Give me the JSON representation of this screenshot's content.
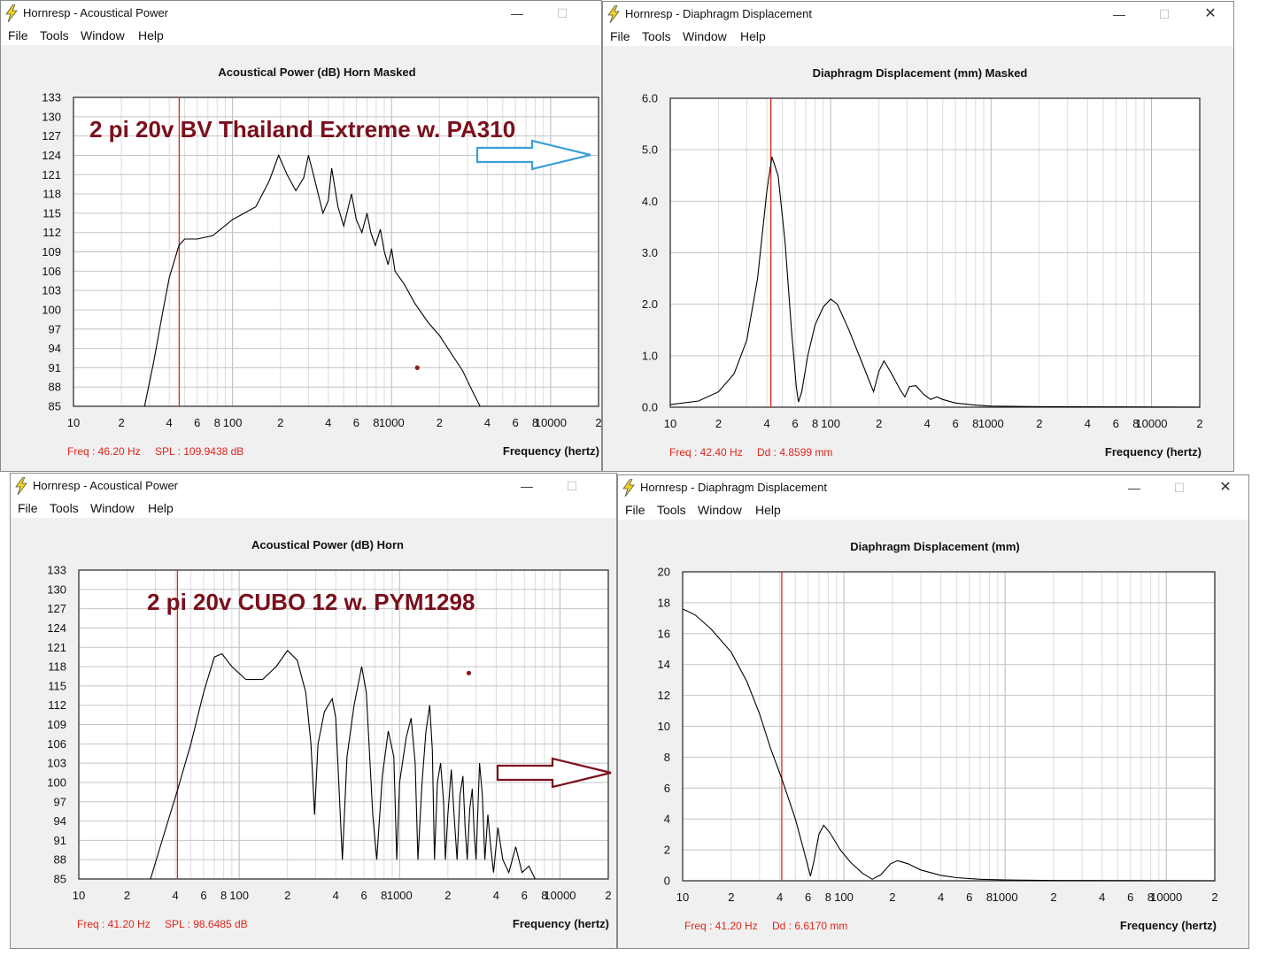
{
  "windows": [
    {
      "title": "Hornresp - Acoustical Power",
      "controls": [
        "—",
        "☐"
      ],
      "menus": [
        "File",
        "Tools",
        "Window",
        "Help"
      ],
      "chart_title": "Acoustical Power (dB)   Horn   Masked",
      "annotation": "2 pi 20v BV Thailand Extreme w. PA310",
      "freq_readout": "Freq : 46.20 Hz",
      "value_readout": "SPL : 109.9438 dB",
      "xlabel": "Frequency (hertz)",
      "arrow_color": "#3aa0d8",
      "chart_data": {
        "type": "line",
        "title": "Acoustical Power (dB)   Horn   Masked",
        "xlabel": "Frequency (hertz)",
        "x_scale": "log",
        "xlim": [
          10,
          20000
        ],
        "ylim": [
          85,
          133
        ],
        "yticks": [
          "133",
          "130",
          "127",
          "124",
          "121",
          "118",
          "115",
          "112",
          "109",
          "106",
          "103",
          "100",
          "97",
          "94",
          "91",
          "88",
          "85"
        ],
        "xticks": [
          "10",
          "2",
          "4",
          "6",
          "8",
          "100",
          "2",
          "4",
          "6",
          "8",
          "1000",
          "2",
          "4",
          "6",
          "8",
          "10000",
          "2"
        ],
        "cursor_x": 46.2,
        "marker": {
          "x": 1450,
          "y": 91
        },
        "series": [
          {
            "points": [
              [
                28,
                85
              ],
              [
                32,
                92
              ],
              [
                36,
                99
              ],
              [
                40,
                105
              ],
              [
                46,
                110
              ],
              [
                50,
                111
              ],
              [
                60,
                111
              ],
              [
                75,
                111.5
              ],
              [
                100,
                114
              ],
              [
                140,
                116
              ],
              [
                170,
                120
              ],
              [
                195,
                124
              ],
              [
                220,
                121
              ],
              [
                250,
                118.5
              ],
              [
                280,
                120.5
              ],
              [
                300,
                124
              ],
              [
                330,
                120
              ],
              [
                370,
                115
              ],
              [
                400,
                117
              ],
              [
                420,
                122
              ],
              [
                460,
                116
              ],
              [
                500,
                113
              ],
              [
                560,
                118
              ],
              [
                600,
                114
              ],
              [
                650,
                112
              ],
              [
                700,
                115
              ],
              [
                740,
                112
              ],
              [
                790,
                110
              ],
              [
                850,
                112.5
              ],
              [
                900,
                109
              ],
              [
                950,
                107
              ],
              [
                1000,
                109.5
              ],
              [
                1050,
                106
              ],
              [
                1200,
                104
              ],
              [
                1400,
                101
              ],
              [
                1700,
                98
              ],
              [
                2000,
                96
              ],
              [
                2400,
                93
              ],
              [
                2800,
                90.5
              ],
              [
                3200,
                87.5
              ],
              [
                3600,
                85
              ]
            ]
          }
        ]
      }
    },
    {
      "title": "Hornresp - Diaphragm Displacement",
      "controls": [
        "—",
        "☐",
        "✕"
      ],
      "menus": [
        "File",
        "Tools",
        "Window",
        "Help"
      ],
      "chart_title": "Diaphragm Displacement (mm)   Masked",
      "freq_readout": "Freq : 42.40 Hz",
      "value_readout": "Dd : 4.8599 mm",
      "xlabel": "Frequency (hertz)",
      "chart_data": {
        "type": "line",
        "title": "Diaphragm Displacement (mm)   Masked",
        "xlabel": "Frequency (hertz)",
        "x_scale": "log",
        "xlim": [
          10,
          20000
        ],
        "ylim": [
          0,
          6
        ],
        "yticks": [
          "6.0",
          "5.0",
          "4.0",
          "3.0",
          "2.0",
          "1.0",
          "0.0"
        ],
        "xticks": [
          "10",
          "2",
          "4",
          "6",
          "8",
          "100",
          "2",
          "4",
          "6",
          "8",
          "1000",
          "2",
          "4",
          "6",
          "8",
          "10000",
          "2"
        ],
        "cursor_x": 42.4,
        "series": [
          {
            "points": [
              [
                10,
                0.05
              ],
              [
                15,
                0.12
              ],
              [
                20,
                0.3
              ],
              [
                25,
                0.65
              ],
              [
                30,
                1.3
              ],
              [
                35,
                2.5
              ],
              [
                40,
                4.2
              ],
              [
                43,
                4.86
              ],
              [
                47,
                4.5
              ],
              [
                52,
                3.2
              ],
              [
                57,
                1.5
              ],
              [
                61,
                0.4
              ],
              [
                63,
                0.1
              ],
              [
                66,
                0.3
              ],
              [
                72,
                1.0
              ],
              [
                80,
                1.6
              ],
              [
                90,
                1.95
              ],
              [
                100,
                2.1
              ],
              [
                110,
                2.0
              ],
              [
                130,
                1.5
              ],
              [
                160,
                0.8
              ],
              [
                185,
                0.3
              ],
              [
                200,
                0.7
              ],
              [
                215,
                0.9
              ],
              [
                240,
                0.65
              ],
              [
                270,
                0.35
              ],
              [
                290,
                0.2
              ],
              [
                310,
                0.4
              ],
              [
                340,
                0.42
              ],
              [
                380,
                0.25
              ],
              [
                420,
                0.15
              ],
              [
                460,
                0.2
              ],
              [
                500,
                0.15
              ],
              [
                600,
                0.08
              ],
              [
                800,
                0.04
              ],
              [
                1000,
                0.02
              ],
              [
                2000,
                0.01
              ],
              [
                20000,
                0.0
              ]
            ]
          }
        ]
      }
    },
    {
      "title": "Hornresp - Acoustical Power",
      "controls": [
        "—",
        "☐"
      ],
      "menus": [
        "File",
        "Tools",
        "Window",
        "Help"
      ],
      "chart_title": "Acoustical Power (dB)   Horn",
      "annotation": "2 pi 20v  CUBO 12 w. PYM1298",
      "freq_readout": "Freq : 41.20 Hz",
      "value_readout": "SPL : 98.6485 dB",
      "xlabel": "Frequency (hertz)",
      "arrow_color": "#7a0f1c",
      "chart_data": {
        "type": "line",
        "title": "Acoustical Power (dB)   Horn",
        "xlabel": "Frequency (hertz)",
        "x_scale": "log",
        "xlim": [
          10,
          20000
        ],
        "ylim": [
          85,
          133
        ],
        "yticks": [
          "133",
          "130",
          "127",
          "124",
          "121",
          "118",
          "115",
          "112",
          "109",
          "106",
          "103",
          "100",
          "97",
          "94",
          "91",
          "88",
          "85"
        ],
        "xticks": [
          "10",
          "2",
          "4",
          "6",
          "8",
          "100",
          "2",
          "4",
          "6",
          "8",
          "1000",
          "2",
          "4",
          "6",
          "8",
          "10000",
          "2"
        ],
        "cursor_x": 41.2,
        "marker": {
          "x": 2700,
          "y": 117
        },
        "series": [
          {
            "points": [
              [
                28,
                85
              ],
              [
                34,
                92
              ],
              [
                41,
                98.6
              ],
              [
                50,
                106
              ],
              [
                60,
                114
              ],
              [
                70,
                119.5
              ],
              [
                78,
                120
              ],
              [
                90,
                118
              ],
              [
                110,
                116
              ],
              [
                140,
                116
              ],
              [
                170,
                118
              ],
              [
                200,
                120.5
              ],
              [
                230,
                119
              ],
              [
                260,
                114
              ],
              [
                280,
                106
              ],
              [
                295,
                95
              ],
              [
                310,
                106
              ],
              [
                340,
                111
              ],
              [
                380,
                113
              ],
              [
                400,
                110
              ],
              [
                440,
                88
              ],
              [
                470,
                104
              ],
              [
                520,
                112
              ],
              [
                580,
                118
              ],
              [
                620,
                114
              ],
              [
                680,
                95
              ],
              [
                720,
                88
              ],
              [
                780,
                101
              ],
              [
                850,
                108
              ],
              [
                920,
                104
              ],
              [
                960,
                88
              ],
              [
                1000,
                100
              ],
              [
                1100,
                107
              ],
              [
                1180,
                110
              ],
              [
                1250,
                103
              ],
              [
                1300,
                88
              ],
              [
                1380,
                100
              ],
              [
                1460,
                108
              ],
              [
                1540,
                112
              ],
              [
                1600,
                105
              ],
              [
                1650,
                88
              ],
              [
                1720,
                100
              ],
              [
                1800,
                103
              ],
              [
                1880,
                97
              ],
              [
                1930,
                88
              ],
              [
                2000,
                95
              ],
              [
                2100,
                102
              ],
              [
                2200,
                94
              ],
              [
                2280,
                88
              ],
              [
                2380,
                98
              ],
              [
                2480,
                101
              ],
              [
                2560,
                93
              ],
              [
                2640,
                88
              ],
              [
                2740,
                96
              ],
              [
                2840,
                99
              ],
              [
                2920,
                92
              ],
              [
                3000,
                88
              ],
              [
                3150,
                103
              ],
              [
                3280,
                98
              ],
              [
                3400,
                88
              ],
              [
                3550,
                95
              ],
              [
                3700,
                90
              ],
              [
                3850,
                86
              ],
              [
                4100,
                93
              ],
              [
                4400,
                88
              ],
              [
                4800,
                86
              ],
              [
                5300,
                90
              ],
              [
                5800,
                86
              ],
              [
                6400,
                87
              ],
              [
                7000,
                85
              ]
            ]
          }
        ]
      }
    },
    {
      "title": "Hornresp - Diaphragm Displacement",
      "controls": [
        "—",
        "☐",
        "✕"
      ],
      "menus": [
        "File",
        "Tools",
        "Window",
        "Help"
      ],
      "chart_title": "Diaphragm Displacement (mm)",
      "freq_readout": "Freq : 41.20 Hz",
      "value_readout": "Dd : 6.6170 mm",
      "xlabel": "Frequency (hertz)",
      "chart_data": {
        "type": "line",
        "title": "Diaphragm Displacement (mm)",
        "xlabel": "Frequency (hertz)",
        "x_scale": "log",
        "xlim": [
          10,
          20000
        ],
        "ylim": [
          0,
          20
        ],
        "yticks": [
          "20",
          "18",
          "16",
          "14",
          "12",
          "10",
          "8",
          "6",
          "4",
          "2",
          "0"
        ],
        "xticks": [
          "10",
          "2",
          "4",
          "6",
          "8",
          "100",
          "2",
          "4",
          "6",
          "8",
          "1000",
          "2",
          "4",
          "6",
          "8",
          "10000",
          "2"
        ],
        "cursor_x": 41.2,
        "series": [
          {
            "points": [
              [
                10,
                17.6
              ],
              [
                12,
                17.2
              ],
              [
                15,
                16.3
              ],
              [
                20,
                14.8
              ],
              [
                25,
                12.9
              ],
              [
                30,
                10.8
              ],
              [
                35,
                8.6
              ],
              [
                41.2,
                6.6
              ],
              [
                50,
                4.0
              ],
              [
                57,
                1.8
              ],
              [
                62,
                0.3
              ],
              [
                65,
                1.2
              ],
              [
                70,
                3.0
              ],
              [
                75,
                3.6
              ],
              [
                82,
                3.1
              ],
              [
                95,
                2.0
              ],
              [
                110,
                1.2
              ],
              [
                130,
                0.5
              ],
              [
                150,
                0.1
              ],
              [
                170,
                0.4
              ],
              [
                195,
                1.1
              ],
              [
                215,
                1.3
              ],
              [
                250,
                1.1
              ],
              [
                300,
                0.7
              ],
              [
                400,
                0.35
              ],
              [
                500,
                0.2
              ],
              [
                700,
                0.1
              ],
              [
                1000,
                0.05
              ],
              [
                2000,
                0.02
              ],
              [
                20000,
                0.0
              ]
            ]
          }
        ]
      }
    }
  ]
}
